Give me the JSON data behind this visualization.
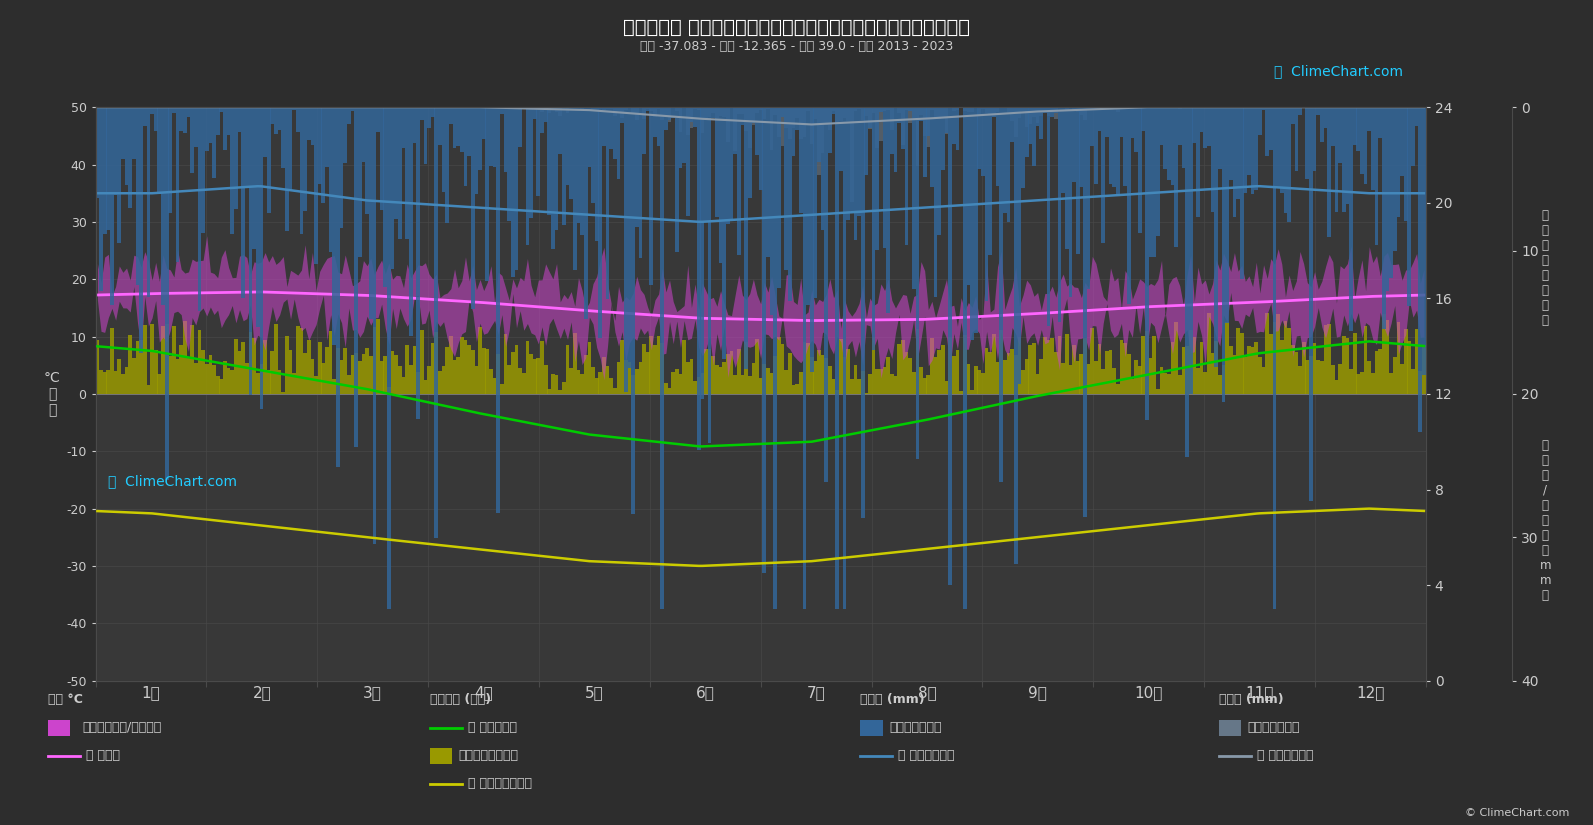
{
  "title": "気候グラフ 七つの海のエディンバラ、トリスタン・ダ・クーニャ",
  "subtitle": "緯度 -37.083 - 経度 -12.365 - 標高 39.0 - 期間 2013 - 2023",
  "background_color": "#2d2d2d",
  "plot_bg_color": "#383838",
  "grid_color": "#4a4a4a",
  "text_color": "#cccccc",
  "months": [
    "1月",
    "2月",
    "3月",
    "4月",
    "5月",
    "6月",
    "7月",
    "8月",
    "9月",
    "10月",
    "11月",
    "12月"
  ],
  "temp_ylim": [
    -50,
    50
  ],
  "temp_monthly_mean": [
    17.5,
    17.8,
    17.2,
    16.0,
    14.5,
    13.2,
    12.8,
    13.0,
    14.0,
    15.2,
    16.0,
    17.0
  ],
  "temp_daily_max_abs": [
    22.0,
    22.5,
    22.0,
    20.5,
    18.5,
    17.0,
    16.5,
    16.8,
    18.0,
    19.5,
    20.5,
    22.0
  ],
  "temp_daily_min_abs": [
    13.0,
    13.5,
    12.5,
    11.5,
    10.0,
    9.0,
    8.5,
    9.0,
    10.0,
    11.0,
    12.0,
    12.5
  ],
  "daylight_hours": [
    13.8,
    13.0,
    12.2,
    11.2,
    10.3,
    9.8,
    10.0,
    10.9,
    11.9,
    12.8,
    13.7,
    14.2
  ],
  "sunshine_mean": [
    7.0,
    6.5,
    6.0,
    5.5,
    5.0,
    4.8,
    5.0,
    5.5,
    6.0,
    6.5,
    7.0,
    7.2
  ],
  "sunshine_daily_max": [
    13.0,
    12.5,
    11.5,
    10.5,
    9.5,
    9.0,
    9.5,
    10.2,
    11.0,
    12.0,
    12.8,
    13.2
  ],
  "rain_monthly_mean": [
    6.0,
    5.5,
    6.5,
    7.0,
    7.5,
    8.0,
    7.5,
    7.0,
    6.5,
    6.0,
    5.5,
    6.0
  ],
  "snow_monthly_mean": [
    0.0,
    0.0,
    0.0,
    0.0,
    0.2,
    0.8,
    1.2,
    0.8,
    0.3,
    0.0,
    0.0,
    0.0
  ],
  "color_bg": "#2d2d2d",
  "color_plot_bg": "#383838",
  "color_temp_fill": "#cc44cc",
  "color_temp_mean": "#ff66ff",
  "color_daylight": "#00cc00",
  "color_sunshine_mean": "#cccc00",
  "color_sunshine_bars": "#999900",
  "color_rain_bars": "#336699",
  "color_rain_mean": "#4488bb",
  "color_snow_bars": "#667788",
  "color_snow_mean": "#8899aa",
  "copyright_text": "© ClimeChart.com"
}
